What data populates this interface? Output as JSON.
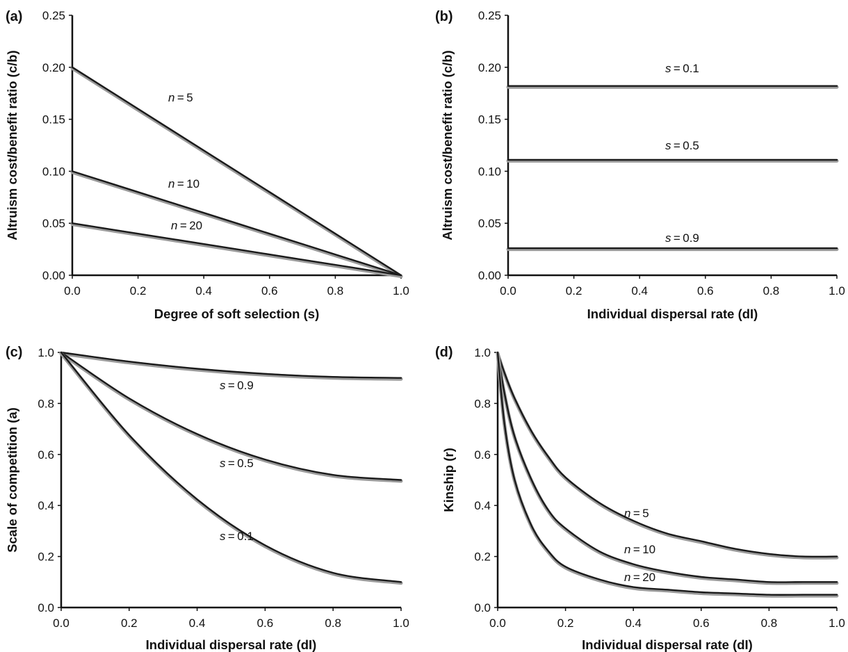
{
  "chart_data": [
    {
      "panel": "(a)",
      "type": "line",
      "xlabel": "Degree of soft selection (s)",
      "ylabel": "Altruism cost/benefit ratio (c/b)",
      "xlim": [
        0,
        1
      ],
      "ylim": [
        0,
        0.25
      ],
      "xticks": [
        "0.0",
        "0.2",
        "0.4",
        "0.6",
        "0.8",
        "1.0"
      ],
      "yticks": [
        "0.00",
        "0.05",
        "0.10",
        "0.15",
        "0.20",
        "0.25"
      ],
      "grid": false,
      "series": [
        {
          "name": "n = 5",
          "label_var": "n",
          "label_val": "5",
          "x": [
            0,
            0.2,
            0.4,
            0.6,
            0.8,
            1.0
          ],
          "y": [
            0.2,
            0.16,
            0.12,
            0.08,
            0.04,
            0.0
          ]
        },
        {
          "name": "n = 10",
          "label_var": "n",
          "label_val": "10",
          "x": [
            0,
            0.2,
            0.4,
            0.6,
            0.8,
            1.0
          ],
          "y": [
            0.1,
            0.08,
            0.06,
            0.04,
            0.02,
            0.0
          ]
        },
        {
          "name": "n = 20",
          "label_var": "n",
          "label_val": "20",
          "x": [
            0,
            0.2,
            0.4,
            0.6,
            0.8,
            1.0
          ],
          "y": [
            0.05,
            0.04,
            0.03,
            0.02,
            0.01,
            0.0
          ]
        }
      ]
    },
    {
      "panel": "(b)",
      "type": "line",
      "xlabel": "Individual dispersal rate (dI)",
      "ylabel": "Altruism cost/benefit ratio (c/b)",
      "xlim": [
        0,
        1
      ],
      "ylim": [
        0,
        0.25
      ],
      "xticks": [
        "0.0",
        "0.2",
        "0.4",
        "0.6",
        "0.8",
        "1.0"
      ],
      "yticks": [
        "0.00",
        "0.05",
        "0.10",
        "0.15",
        "0.20",
        "0.25"
      ],
      "grid": false,
      "series": [
        {
          "name": "s = 0.1",
          "label_var": "s",
          "label_val": "0.1",
          "x": [
            0,
            1.0
          ],
          "y": [
            0.182,
            0.182
          ]
        },
        {
          "name": "s = 0.5",
          "label_var": "s",
          "label_val": "0.5",
          "x": [
            0,
            1.0
          ],
          "y": [
            0.111,
            0.111
          ]
        },
        {
          "name": "s = 0.9",
          "label_var": "s",
          "label_val": "0.9",
          "x": [
            0,
            1.0
          ],
          "y": [
            0.026,
            0.026
          ]
        }
      ]
    },
    {
      "panel": "(c)",
      "type": "line",
      "xlabel": "Individual dispersal rate (dI)",
      "ylabel": "Scale of competition (a)",
      "xlim": [
        0,
        1
      ],
      "ylim": [
        0,
        1
      ],
      "xticks": [
        "0.0",
        "0.2",
        "0.4",
        "0.6",
        "0.8",
        "1.0"
      ],
      "yticks": [
        "0.0",
        "0.2",
        "0.4",
        "0.6",
        "0.8",
        "1.0"
      ],
      "grid": false,
      "series": [
        {
          "name": "s = 0.9",
          "label_var": "s",
          "label_val": "0.9",
          "x": [
            0,
            0.2,
            0.4,
            0.6,
            0.8,
            1.0
          ],
          "y": [
            1.0,
            0.964,
            0.936,
            0.916,
            0.904,
            0.9
          ]
        },
        {
          "name": "s = 0.5",
          "label_var": "s",
          "label_val": "0.5",
          "x": [
            0,
            0.2,
            0.4,
            0.6,
            0.8,
            1.0
          ],
          "y": [
            1.0,
            0.82,
            0.68,
            0.58,
            0.52,
            0.5
          ]
        },
        {
          "name": "s = 0.1",
          "label_var": "s",
          "label_val": "0.1",
          "x": [
            0,
            0.2,
            0.4,
            0.6,
            0.8,
            1.0
          ],
          "y": [
            1.0,
            0.676,
            0.424,
            0.244,
            0.136,
            0.1
          ]
        }
      ]
    },
    {
      "panel": "(d)",
      "type": "line",
      "xlabel": "Individual dispersal rate (dI)",
      "ylabel": "Kinship (r)",
      "xlim": [
        0,
        1
      ],
      "ylim": [
        0,
        1
      ],
      "xticks": [
        "0.0",
        "0.2",
        "0.4",
        "0.6",
        "0.8",
        "1.0"
      ],
      "yticks": [
        "0.0",
        "0.2",
        "0.4",
        "0.6",
        "0.8",
        "1.0"
      ],
      "grid": false,
      "series": [
        {
          "name": "n = 5",
          "label_var": "n",
          "label_val": "5",
          "x": [
            0,
            0.02,
            0.05,
            0.1,
            0.15,
            0.2,
            0.3,
            0.4,
            0.5,
            0.6,
            0.7,
            0.8,
            0.9,
            1.0
          ],
          "y": [
            1.0,
            0.92,
            0.82,
            0.69,
            0.59,
            0.51,
            0.41,
            0.34,
            0.29,
            0.26,
            0.23,
            0.21,
            0.2,
            0.2
          ]
        },
        {
          "name": "n = 10",
          "label_var": "n",
          "label_val": "10",
          "x": [
            0,
            0.02,
            0.05,
            0.1,
            0.15,
            0.2,
            0.3,
            0.4,
            0.5,
            0.6,
            0.7,
            0.8,
            0.9,
            1.0
          ],
          "y": [
            1.0,
            0.84,
            0.67,
            0.5,
            0.38,
            0.31,
            0.22,
            0.17,
            0.14,
            0.12,
            0.11,
            0.1,
            0.1,
            0.1
          ]
        },
        {
          "name": "n = 20",
          "label_var": "n",
          "label_val": "20",
          "x": [
            0,
            0.02,
            0.05,
            0.1,
            0.15,
            0.2,
            0.3,
            0.4,
            0.5,
            0.6,
            0.7,
            0.8,
            0.9,
            1.0
          ],
          "y": [
            1.0,
            0.72,
            0.5,
            0.32,
            0.22,
            0.16,
            0.11,
            0.08,
            0.07,
            0.06,
            0.055,
            0.05,
            0.05,
            0.05
          ]
        }
      ]
    }
  ]
}
